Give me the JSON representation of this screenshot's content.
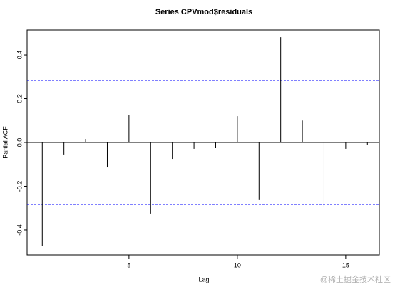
{
  "chart_data": {
    "type": "pacf",
    "title": "Series  CPVmod$residuals",
    "x_label": "Lag",
    "y_label": "Partial ACF",
    "x": [
      1,
      2,
      3,
      4,
      5,
      6,
      7,
      8,
      9,
      10,
      11,
      12,
      13,
      14,
      15,
      16
    ],
    "values": [
      -0.475,
      -0.055,
      0.016,
      -0.114,
      0.124,
      -0.325,
      -0.075,
      -0.029,
      -0.026,
      0.12,
      -0.263,
      0.481,
      0.1,
      -0.293,
      -0.029,
      -0.013
    ],
    "color": "#000000",
    "ci": [
      0.283,
      -0.283
    ],
    "ci_color": "#0000ff",
    "xlim": [
      0.3,
      16.55
    ],
    "xticks": [
      5,
      10,
      15
    ],
    "ylim": [
      -0.514,
      0.514
    ],
    "yticks": [
      -0.4,
      -0.2,
      {
        "value": 0,
        "label": "0.0"
      },
      0.2,
      0.4
    ]
  },
  "watermark": "@稀土掘金技术社区"
}
